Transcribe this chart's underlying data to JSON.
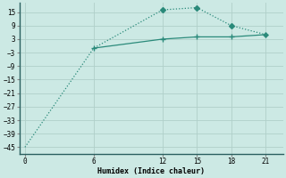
{
  "x_steep": [
    0,
    6,
    12,
    15,
    18,
    21
  ],
  "y_steep": [
    -45,
    -1,
    16,
    17,
    9,
    5
  ],
  "x_flat": [
    6,
    12,
    15,
    18,
    21
  ],
  "y_flat": [
    -1,
    3,
    4,
    4,
    5
  ],
  "line_color": "#2a8a7a",
  "bg_color": "#cce9e4",
  "grid_color": "#b0cfc9",
  "xlabel": "Humidex (Indice chaleur)",
  "yticks": [
    -45,
    -39,
    -33,
    -27,
    -21,
    -15,
    -9,
    -3,
    3,
    9,
    15
  ],
  "xticks": [
    0,
    6,
    12,
    15,
    18,
    21
  ],
  "ylim": [
    -48,
    19
  ],
  "xlim": [
    -0.5,
    22.5
  ]
}
